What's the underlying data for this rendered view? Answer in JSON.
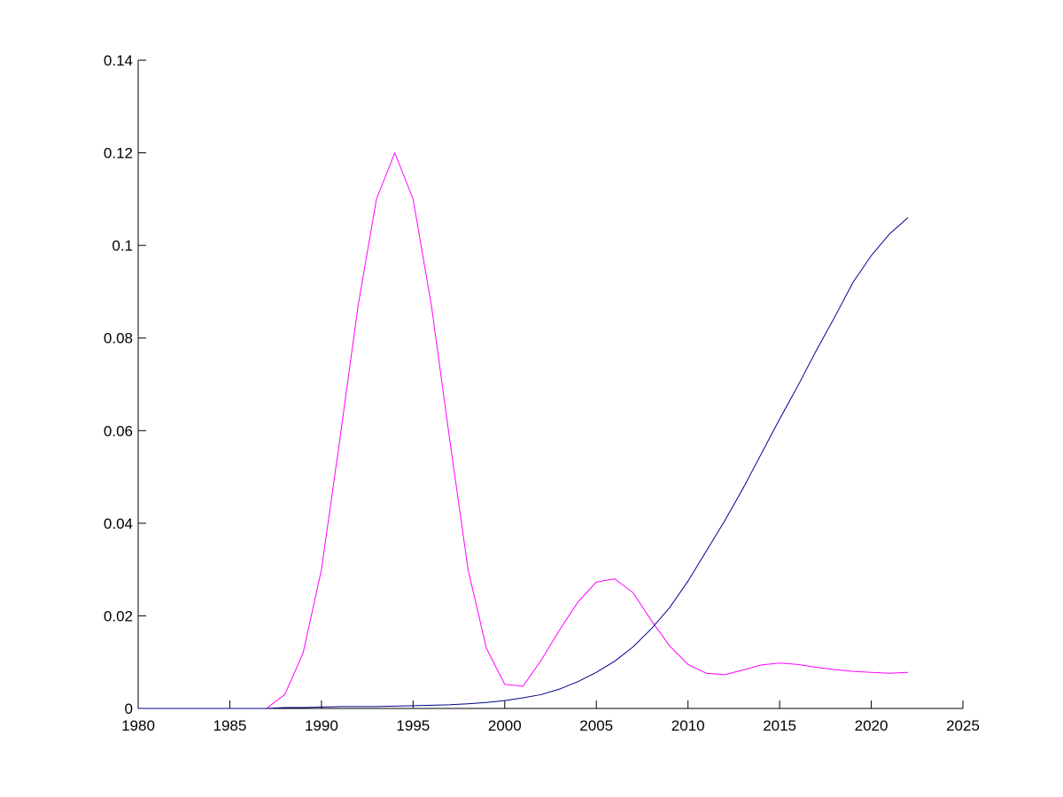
{
  "chart_data": {
    "type": "line",
    "x": [
      1980,
      1981,
      1982,
      1983,
      1984,
      1985,
      1986,
      1987,
      1988,
      1989,
      1990,
      1991,
      1992,
      1993,
      1994,
      1995,
      1996,
      1997,
      1998,
      1999,
      2000,
      2001,
      2002,
      2003,
      2004,
      2005,
      2006,
      2007,
      2008,
      2009,
      2010,
      2011,
      2012,
      2013,
      2014,
      2015,
      2016,
      2017,
      2018,
      2019,
      2020,
      2021,
      2022
    ],
    "series": [
      {
        "color": "#ff00ff",
        "values": [
          0,
          0,
          0,
          0,
          0,
          0,
          0,
          0,
          0.003,
          0.012,
          0.03,
          0.058,
          0.087,
          0.11,
          0.12,
          0.11,
          0.087,
          0.058,
          0.03,
          0.013,
          0.0052,
          0.0048,
          0.0105,
          0.017,
          0.023,
          0.0273,
          0.028,
          0.025,
          0.019,
          0.0135,
          0.0095,
          0.0076,
          0.0073,
          0.0083,
          0.0094,
          0.0098,
          0.0095,
          0.0089,
          0.0084,
          0.008,
          0.0078,
          0.0076,
          0.0078
        ]
      },
      {
        "color": "#00008b",
        "values": [
          0,
          0,
          0,
          0,
          0,
          0,
          0,
          0,
          0.0002,
          0.0002,
          0.0003,
          0.0004,
          0.0004,
          0.0004,
          0.0005,
          0.0006,
          0.0007,
          0.0008,
          0.001,
          0.0013,
          0.0017,
          0.0023,
          0.003,
          0.0042,
          0.0058,
          0.0078,
          0.0102,
          0.0133,
          0.0172,
          0.0218,
          0.0275,
          0.034,
          0.0405,
          0.0475,
          0.055,
          0.0625,
          0.0697,
          0.0773,
          0.0845,
          0.092,
          0.0978,
          0.1025,
          0.106
        ]
      }
    ],
    "xlim": [
      1980,
      2025
    ],
    "xticks": [
      1980,
      1985,
      1990,
      1995,
      2000,
      2005,
      2010,
      2015,
      2020,
      2025
    ],
    "ylim": [
      0,
      0.14
    ],
    "yticks": [
      0,
      0.02,
      0.04,
      0.06,
      0.08,
      0.1,
      0.12,
      0.14
    ],
    "grid": false
  }
}
